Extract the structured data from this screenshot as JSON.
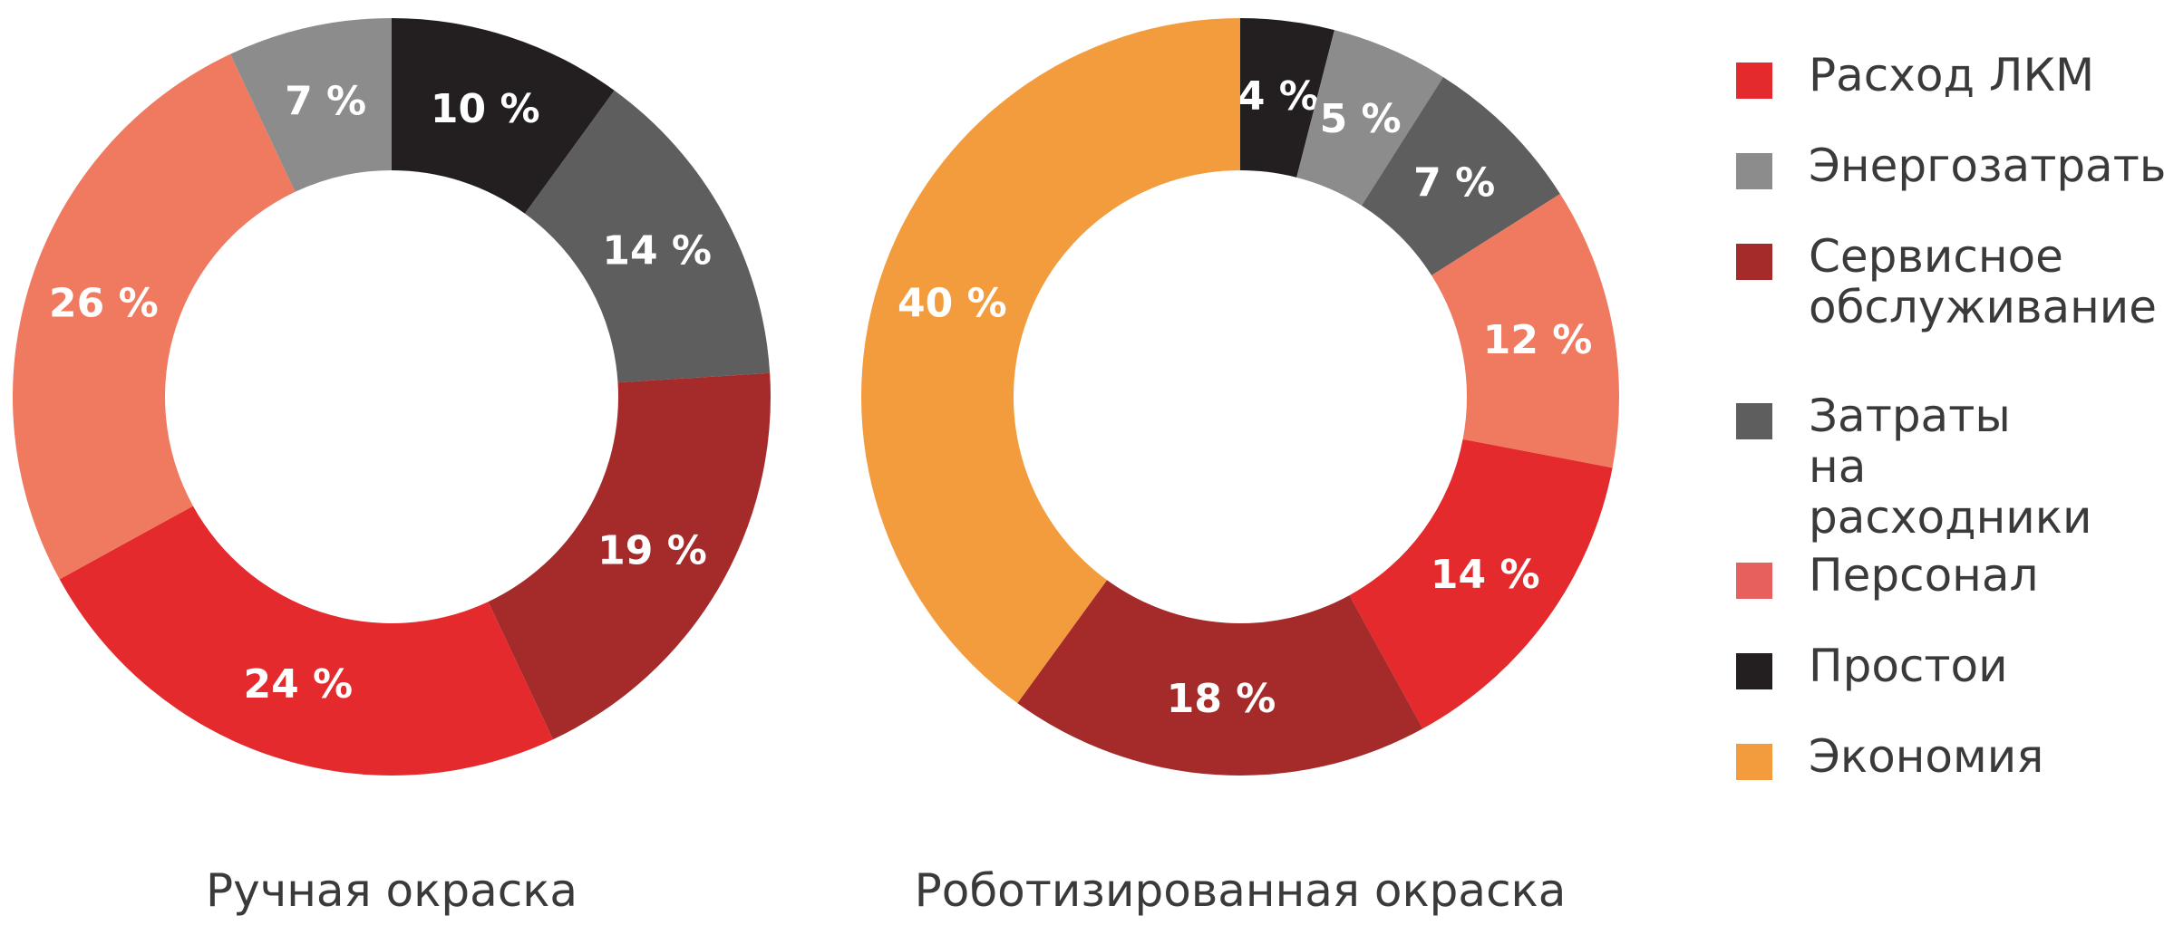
{
  "chart_data": [
    {
      "type": "donut",
      "title": "Ручная окраска",
      "slices": [
        {
          "label": "Простои",
          "value": 10,
          "text": "10 %",
          "color": "#231f20"
        },
        {
          "label": "Затраты на расходники",
          "value": 14,
          "text": "14 %",
          "color": "#5e5e5e"
        },
        {
          "label": "Сервисное обслуживание",
          "value": 19,
          "text": "19 %",
          "color": "#a52a2a"
        },
        {
          "label": "Расход ЛКМ",
          "value": 24,
          "text": "24 %",
          "color": "#e52a2e"
        },
        {
          "label": "Персонал",
          "value": 26,
          "text": "26 %",
          "color": "#ef7a60"
        },
        {
          "label": "Энергозатраты",
          "value": 7,
          "text": "7 %",
          "color": "#8c8c8c"
        }
      ]
    },
    {
      "type": "donut",
      "title": "Роботизированная окраска",
      "slices": [
        {
          "label": "Простои",
          "value": 4,
          "text": "4 %",
          "color": "#231f20"
        },
        {
          "label": "Энергозатраты",
          "value": 5,
          "text": "5 %",
          "color": "#8c8c8c"
        },
        {
          "label": "Затраты на расходники",
          "value": 7,
          "text": "7 %",
          "color": "#5e5e5e"
        },
        {
          "label": "Персонал",
          "value": 12,
          "text": "12 %",
          "color": "#ef7a60"
        },
        {
          "label": "Расход ЛКМ",
          "value": 14,
          "text": "14 %",
          "color": "#e52a2e"
        },
        {
          "label": "Сервисное обслуживание",
          "value": 18,
          "text": "18 %",
          "color": "#a52a2a"
        },
        {
          "label": "Экономия",
          "value": 40,
          "text": "40 %",
          "color": "#f39c3e"
        }
      ]
    }
  ],
  "legend": [
    {
      "label": "Расход ЛКМ",
      "color": "#e52a2e"
    },
    {
      "label": "Энергозатраты",
      "color": "#8c8c8c"
    },
    {
      "label": "Сервисное\nобслуживание",
      "color": "#a52a2a"
    },
    {
      "label": "Затраты\nна расходники",
      "color": "#5e5e5e"
    },
    {
      "label": "Персонал",
      "color": "#e8605e"
    },
    {
      "label": "Простои",
      "color": "#231f20"
    },
    {
      "label": "Экономия",
      "color": "#f39c3e"
    }
  ]
}
